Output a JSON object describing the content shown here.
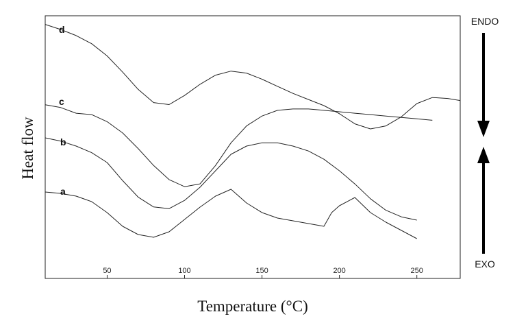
{
  "chart_data": {
    "type": "line",
    "xlabel": "Temperature (°C)",
    "ylabel": "Heat flow",
    "xlim": [
      10,
      278
    ],
    "x_ticks": [
      50,
      100,
      150,
      200,
      250
    ],
    "grid": false,
    "y_axis_ticks_shown": false,
    "endo_label": "ENDO",
    "exo_label": "EXO",
    "series": [
      {
        "name": "a",
        "x": [
          10,
          20,
          30,
          40,
          50,
          60,
          70,
          80,
          90,
          100,
          110,
          120,
          130,
          140,
          150,
          160,
          170,
          180,
          190,
          195,
          200,
          210,
          220,
          230,
          240,
          250
        ],
        "y": [
          0.1,
          0.08,
          0.04,
          -0.04,
          -0.2,
          -0.4,
          -0.52,
          -0.56,
          -0.48,
          -0.3,
          -0.12,
          0.04,
          0.14,
          -0.06,
          -0.2,
          -0.28,
          -0.32,
          -0.36,
          -0.4,
          -0.2,
          -0.1,
          0.02,
          -0.2,
          -0.34,
          -0.46,
          -0.58
        ]
      },
      {
        "name": "b",
        "x": [
          10,
          20,
          30,
          40,
          50,
          60,
          70,
          80,
          90,
          100,
          110,
          120,
          130,
          140,
          150,
          160,
          170,
          180,
          190,
          200,
          210,
          220,
          230,
          240,
          250
        ],
        "y": [
          0.1,
          0.06,
          0.0,
          -0.08,
          -0.2,
          -0.42,
          -0.62,
          -0.74,
          -0.76,
          -0.66,
          -0.5,
          -0.3,
          -0.1,
          0.0,
          0.04,
          0.04,
          0.0,
          -0.06,
          -0.16,
          -0.3,
          -0.46,
          -0.64,
          -0.78,
          -0.86,
          -0.9
        ]
      },
      {
        "name": "c",
        "x": [
          10,
          20,
          30,
          40,
          50,
          60,
          70,
          80,
          90,
          100,
          110,
          120,
          130,
          140,
          150,
          160,
          170,
          180,
          190,
          200,
          210,
          220,
          230,
          240,
          250,
          260
        ],
        "y": [
          0.1,
          0.06,
          -0.02,
          -0.04,
          -0.14,
          -0.3,
          -0.52,
          -0.76,
          -0.96,
          -1.06,
          -1.02,
          -0.76,
          -0.44,
          -0.2,
          -0.06,
          0.02,
          0.04,
          0.04,
          0.02,
          0.0,
          -0.02,
          -0.04,
          -0.06,
          -0.08,
          -0.1,
          -0.12
        ]
      },
      {
        "name": "d",
        "x": [
          10,
          20,
          30,
          40,
          50,
          60,
          70,
          80,
          90,
          100,
          110,
          120,
          130,
          140,
          150,
          160,
          170,
          180,
          190,
          200,
          210,
          220,
          230,
          240,
          250,
          260,
          270,
          278
        ],
        "y": [
          0.1,
          0.0,
          -0.12,
          -0.28,
          -0.52,
          -0.84,
          -1.18,
          -1.44,
          -1.48,
          -1.3,
          -1.08,
          -0.9,
          -0.82,
          -0.86,
          -0.98,
          -1.12,
          -1.26,
          -1.38,
          -1.5,
          -1.66,
          -1.86,
          -1.96,
          -1.9,
          -1.72,
          -1.46,
          -1.34,
          -1.36,
          -1.4
        ]
      }
    ]
  }
}
